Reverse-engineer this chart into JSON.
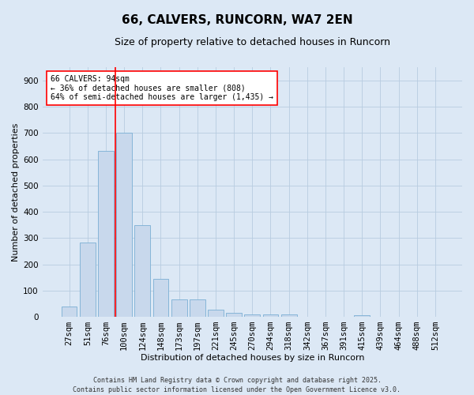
{
  "title": "66, CALVERS, RUNCORN, WA7 2EN",
  "subtitle": "Size of property relative to detached houses in Runcorn",
  "xlabel": "Distribution of detached houses by size in Runcorn",
  "ylabel": "Number of detached properties",
  "categories": [
    "27sqm",
    "51sqm",
    "76sqm",
    "100sqm",
    "124sqm",
    "148sqm",
    "173sqm",
    "197sqm",
    "221sqm",
    "245sqm",
    "270sqm",
    "294sqm",
    "318sqm",
    "342sqm",
    "367sqm",
    "391sqm",
    "415sqm",
    "439sqm",
    "464sqm",
    "488sqm",
    "512sqm"
  ],
  "values": [
    40,
    283,
    632,
    700,
    350,
    143,
    65,
    65,
    28,
    15,
    10,
    10,
    10,
    0,
    0,
    0,
    7,
    0,
    0,
    0,
    0
  ],
  "bar_color": "#c8d8ec",
  "bar_edge_color": "#7aafd4",
  "vline_color": "red",
  "vline_pos": 2.5,
  "annotation_text": "66 CALVERS: 94sqm\n← 36% of detached houses are smaller (808)\n64% of semi-detached houses are larger (1,435) →",
  "annotation_box_facecolor": "white",
  "annotation_box_edgecolor": "red",
  "ylim": [
    0,
    950
  ],
  "yticks": [
    0,
    100,
    200,
    300,
    400,
    500,
    600,
    700,
    800,
    900
  ],
  "bg_color": "#dce8f5",
  "plot_bg_color": "#dce8f5",
  "grid_color": "#b8cce0",
  "footer": "Contains HM Land Registry data © Crown copyright and database right 2025.\nContains public sector information licensed under the Open Government Licence v3.0.",
  "title_fontsize": 11,
  "subtitle_fontsize": 9,
  "xlabel_fontsize": 8,
  "ylabel_fontsize": 8,
  "tick_fontsize": 7.5,
  "footer_fontsize": 6,
  "annotation_fontsize": 7
}
